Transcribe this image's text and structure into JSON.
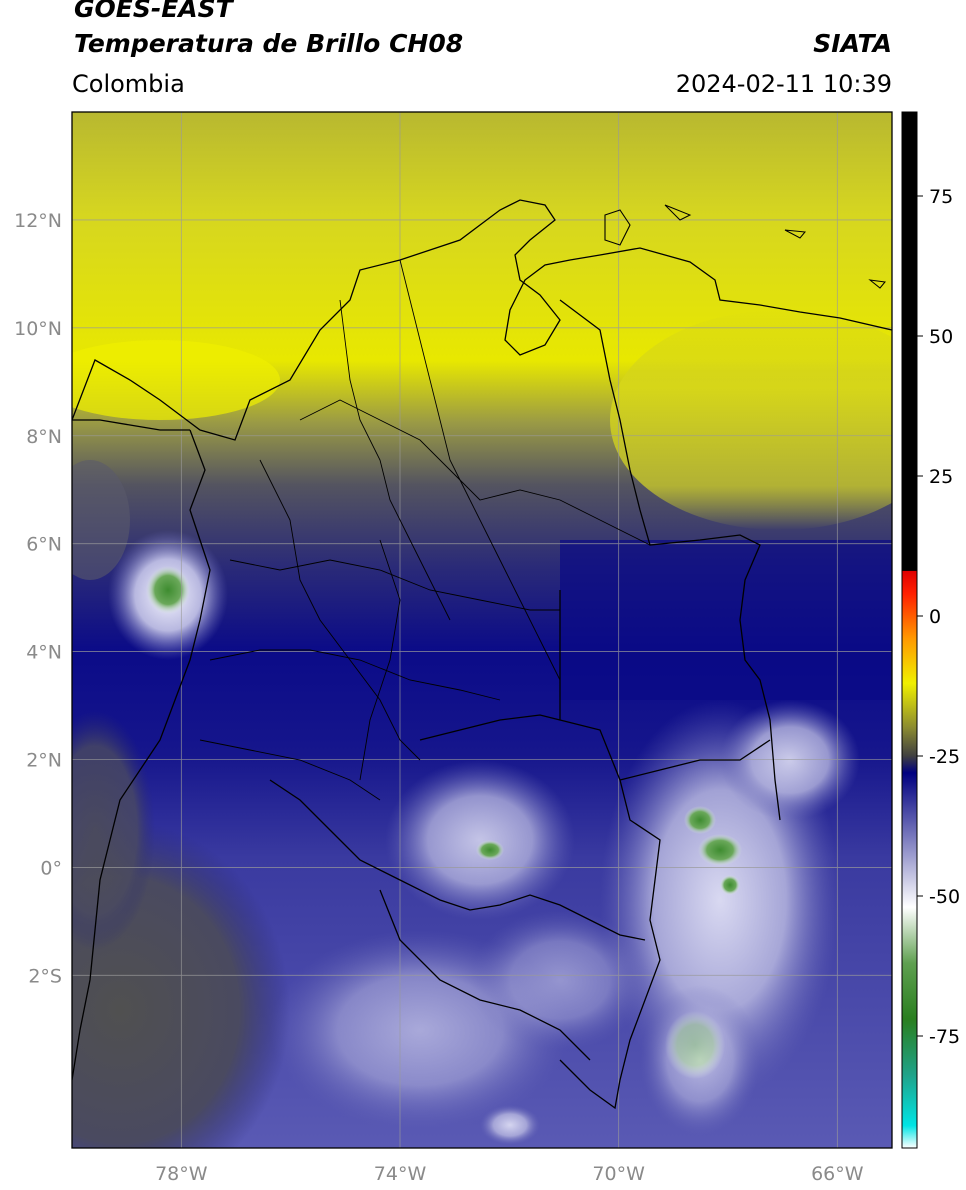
{
  "header": {
    "satellite": "GOES-EAST",
    "product": "Temperatura de Brillo CH08",
    "region": "Colombia",
    "brand": "SIATA",
    "timestamp": "2024-02-11 10:39"
  },
  "map": {
    "lon_range": [
      -80,
      -65
    ],
    "lat_range": [
      -5.2,
      14
    ],
    "lat_ticks": [
      {
        "value": 12,
        "label": "12°N"
      },
      {
        "value": 10,
        "label": "10°N"
      },
      {
        "value": 8,
        "label": "8°N"
      },
      {
        "value": 6,
        "label": "6°N"
      },
      {
        "value": 4,
        "label": "4°N"
      },
      {
        "value": 2,
        "label": "2°N"
      },
      {
        "value": 0,
        "label": "0°"
      },
      {
        "value": -2,
        "label": "2°S"
      }
    ],
    "lon_ticks": [
      {
        "value": -78,
        "label": "78°W"
      },
      {
        "value": -74,
        "label": "74°W"
      },
      {
        "value": -70,
        "label": "70°W"
      },
      {
        "value": -66,
        "label": "66°W"
      }
    ],
    "grid": true
  },
  "colorbar": {
    "range": [
      -95,
      90
    ],
    "ticks": [
      {
        "value": 75,
        "label": "75"
      },
      {
        "value": 50,
        "label": "50"
      },
      {
        "value": 25,
        "label": "25"
      },
      {
        "value": 0,
        "label": "0"
      },
      {
        "value": -25,
        "label": "-25"
      },
      {
        "value": -50,
        "label": "-50"
      },
      {
        "value": -75,
        "label": "-75"
      }
    ],
    "stops": [
      {
        "value": -95,
        "color": "#ffffff"
      },
      {
        "value": -91,
        "color": "#00e5e5"
      },
      {
        "value": -82,
        "color": "#1fa38a"
      },
      {
        "value": -72,
        "color": "#2a7f1f"
      },
      {
        "value": -62,
        "color": "#5fa050"
      },
      {
        "value": -52,
        "color": "#ffffff"
      },
      {
        "value": -40,
        "color": "#7f7fc0"
      },
      {
        "value": -28,
        "color": "#000080"
      },
      {
        "value": -25,
        "color": "#404040"
      },
      {
        "value": -20,
        "color": "#8a8a30"
      },
      {
        "value": -12,
        "color": "#f0f000"
      },
      {
        "value": -4,
        "color": "#ff9900"
      },
      {
        "value": 4,
        "color": "#ff2000"
      },
      {
        "value": 8,
        "color": "#e00000"
      },
      {
        "value": 8.1,
        "color": "#000000"
      },
      {
        "value": 90,
        "color": "#000000"
      }
    ]
  }
}
